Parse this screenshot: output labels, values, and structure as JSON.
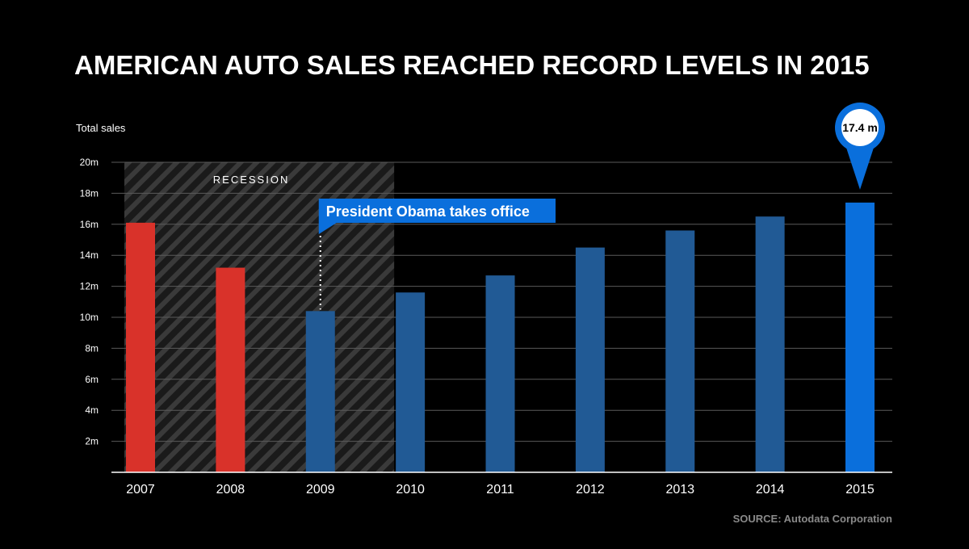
{
  "chart_data": {
    "type": "bar",
    "title": "AMERICAN AUTO SALES REACHED RECORD LEVELS IN 2015",
    "ylabel": "Total sales",
    "xlabel": "",
    "categories": [
      "2007",
      "2008",
      "2009",
      "2010",
      "2011",
      "2012",
      "2013",
      "2014",
      "2015"
    ],
    "values": [
      16.1,
      13.2,
      10.4,
      11.6,
      12.7,
      14.5,
      15.6,
      16.5,
      17.4
    ],
    "ylim": [
      0,
      20
    ],
    "yticks": [
      2,
      4,
      6,
      8,
      10,
      12,
      14,
      16,
      18,
      20
    ],
    "ytick_labels": [
      "2m",
      "4m",
      "6m",
      "8m",
      "10m",
      "12m",
      "14m",
      "16m",
      "18m",
      "20m"
    ],
    "grid": true,
    "bar_colors": [
      "#d9322a",
      "#d9322a",
      "#215a95",
      "#215a95",
      "#215a95",
      "#215a95",
      "#215a95",
      "#215a95",
      "#0a6fdc"
    ],
    "shaded_region": {
      "label": "RECESSION",
      "from": "2007",
      "to": "2010"
    },
    "annotations": [
      {
        "category": "2009",
        "text": "President Obama takes office",
        "color": "#0a6fdc"
      },
      {
        "category": "2015",
        "text": "17.4 m",
        "style": "map-pin",
        "color": "#0a6fdc"
      }
    ],
    "source": "SOURCE: Autodata Corporation"
  },
  "colors": {
    "background": "#000000",
    "text": "#ffffff",
    "grid": "#5a5a5a",
    "source_text": "#8a8a8a",
    "recession_stripe": "#3a3a3a"
  }
}
